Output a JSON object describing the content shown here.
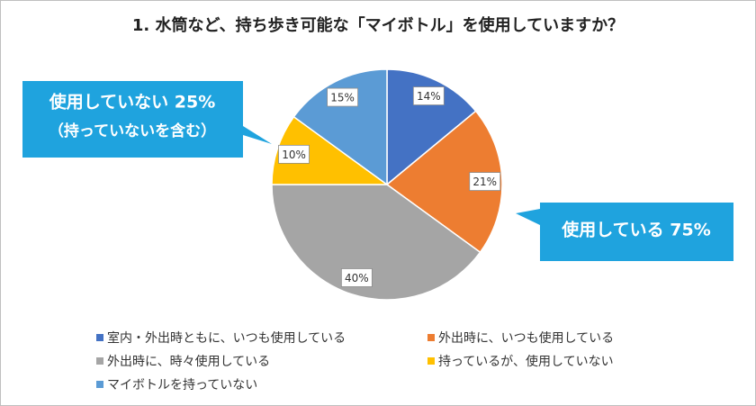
{
  "chart_data": {
    "type": "pie",
    "title": "1. 水筒など、持ち歩き可能な「マイボトル」を使用していますか？",
    "categories": [
      "室内・外出時ともに、いつも使用している",
      "外出時に、いつも使用している",
      "外出時に、時々使用している",
      "持っているが、使用していない",
      "マイボトルを持っていない"
    ],
    "values": [
      14,
      21,
      40,
      10,
      15
    ],
    "value_labels": [
      "14%",
      "21%",
      "40%",
      "10%",
      "15%"
    ],
    "colors": [
      "#4472c4",
      "#ed7d31",
      "#a5a5a5",
      "#ffc000",
      "#5b9bd5"
    ],
    "annotations": [
      "使用していない 25%",
      "（持っていないを含む）",
      "使用している 75%"
    ]
  }
}
